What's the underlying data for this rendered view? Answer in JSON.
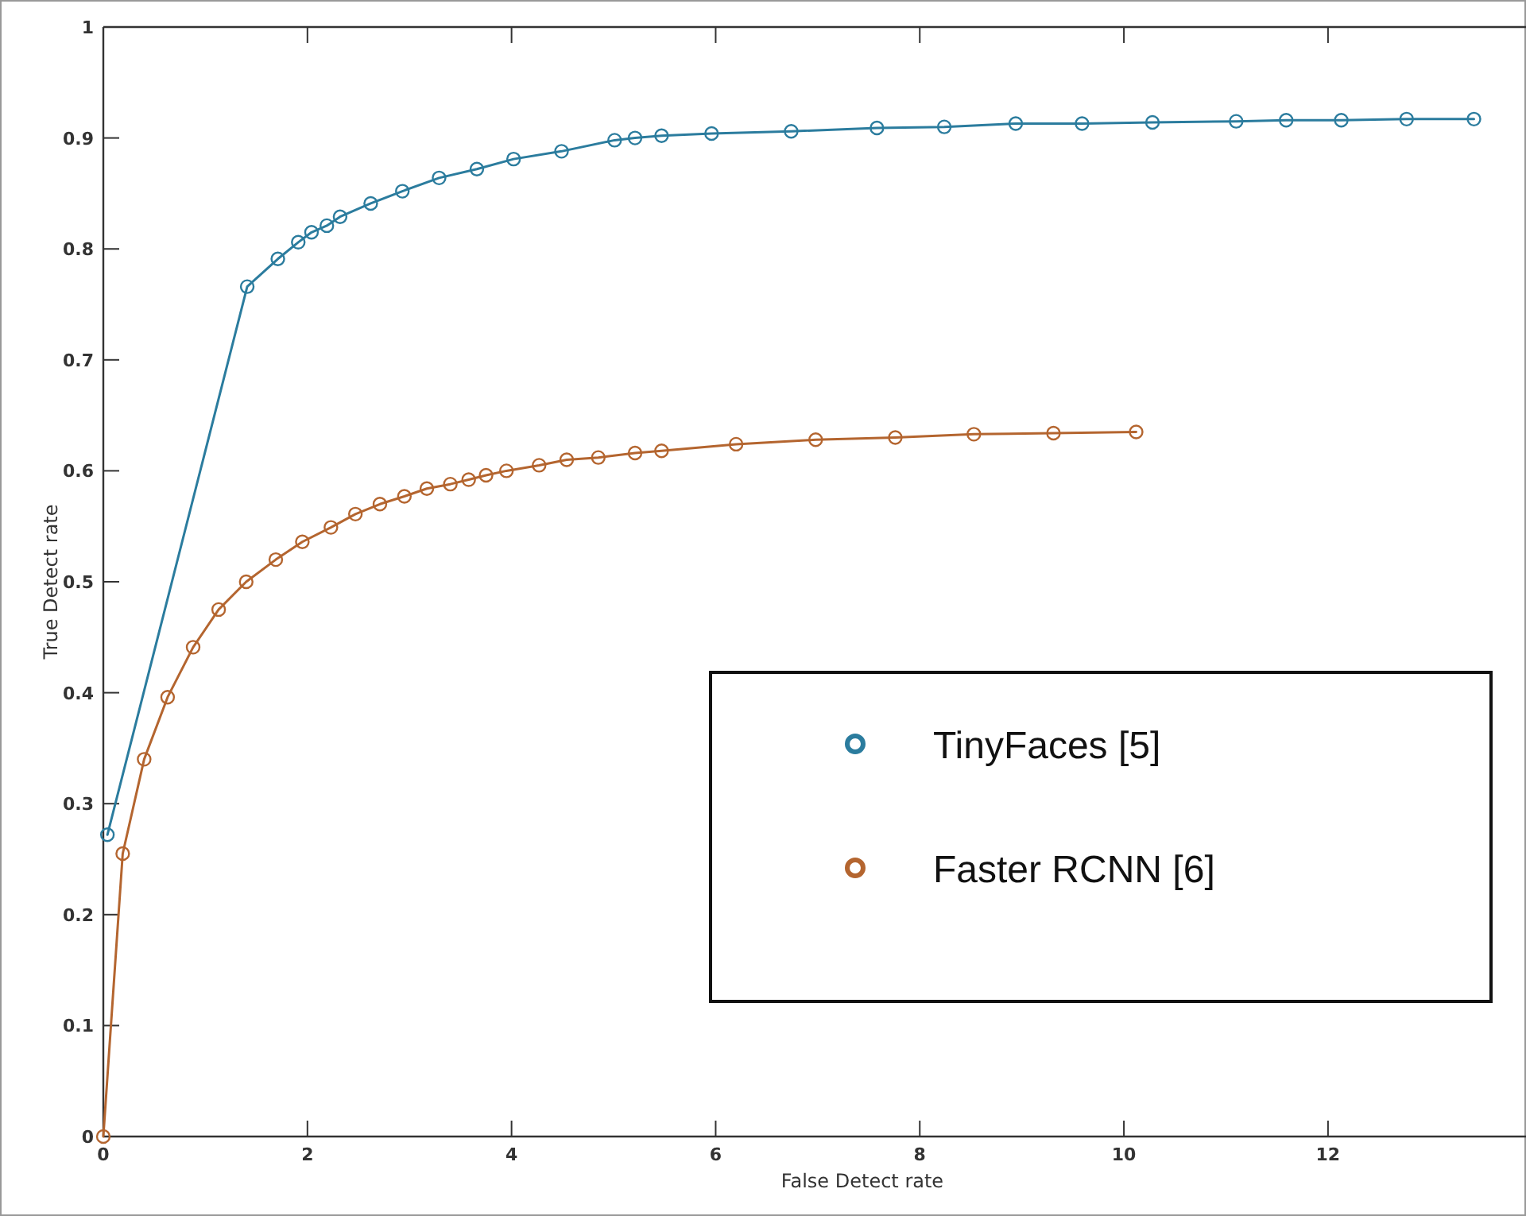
{
  "chart_data": {
    "type": "line",
    "xlabel": "False Detect rate",
    "ylabel": "True Detect rate",
    "xlim": [
      0,
      13.94
    ],
    "xticks": [
      0,
      2,
      4,
      6,
      8,
      10,
      12
    ],
    "ylim": [
      0,
      1
    ],
    "yticks": [
      0,
      0.1,
      0.2,
      0.3,
      0.4,
      0.5,
      0.6,
      0.7,
      0.8,
      0.9,
      1
    ],
    "marker": "circle",
    "line_style": "solid",
    "legend": "bottom right",
    "grid": false,
    "series": [
      {
        "name": "TinyFaces [5]",
        "color": "#2b7c9e",
        "x": [
          0.04,
          1.41,
          1.71,
          1.91,
          2.04,
          2.19,
          2.32,
          2.62,
          2.93,
          3.29,
          3.66,
          4.02,
          4.49,
          5.01,
          5.21,
          5.47,
          5.96,
          6.74,
          7.58,
          8.24,
          8.94,
          9.59,
          10.28,
          11.1,
          11.59,
          12.13,
          12.77,
          13.43
        ],
        "values": [
          0.272,
          0.766,
          0.791,
          0.806,
          0.815,
          0.821,
          0.829,
          0.841,
          0.852,
          0.864,
          0.872,
          0.881,
          0.888,
          0.898,
          0.9,
          0.902,
          0.904,
          0.906,
          0.909,
          0.91,
          0.913,
          0.913,
          0.914,
          0.915,
          0.916,
          0.916,
          0.917,
          0.917
        ]
      },
      {
        "name": "Faster RCNN [6]",
        "color": "#b4652f",
        "x": [
          0,
          0.19,
          0.4,
          0.63,
          0.88,
          1.13,
          1.4,
          1.69,
          1.95,
          2.23,
          2.47,
          2.71,
          2.95,
          3.17,
          3.4,
          3.58,
          3.75,
          3.95,
          4.27,
          4.54,
          4.85,
          5.21,
          5.47,
          6.2,
          6.98,
          7.76,
          8.53,
          9.31,
          10.12
        ],
        "values": [
          0,
          0.255,
          0.34,
          0.396,
          0.441,
          0.475,
          0.5,
          0.52,
          0.536,
          0.549,
          0.561,
          0.57,
          0.577,
          0.584,
          0.588,
          0.592,
          0.596,
          0.6,
          0.605,
          0.61,
          0.612,
          0.616,
          0.618,
          0.624,
          0.628,
          0.63,
          0.633,
          0.634,
          0.635
        ]
      }
    ]
  }
}
